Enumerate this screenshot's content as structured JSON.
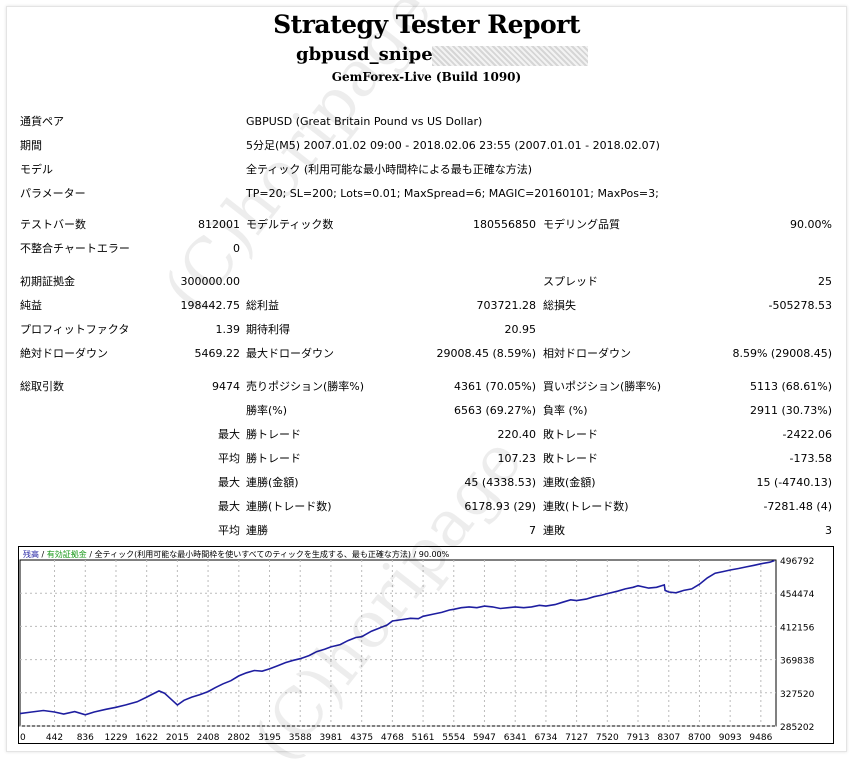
{
  "header": {
    "title": "Strategy Tester Report",
    "ea_name": "gbpusd_sniper",
    "build": "GemForex-Live (Build 1090)"
  },
  "info": [
    {
      "label": "通貨ペア",
      "value": "GBPUSD (Great Britain Pound vs US Dollar)"
    },
    {
      "label": "期間",
      "value": "5分足(M5) 2007.01.02 09:00 - 2018.02.06 23:55 (2007.01.01 - 2018.02.07)"
    },
    {
      "label": "モデル",
      "value": "全ティック (利用可能な最小時間枠による最も正確な方法)"
    },
    {
      "label": "パラメーター",
      "value": "TP=20; SL=200; Lots=0.01; MaxSpread=6; MAGIC=20160101; MaxPos=3;"
    }
  ],
  "stats": {
    "bars_label": "テストバー数",
    "bars": "812001",
    "ticks_label": "モデルティック数",
    "ticks": "180556850",
    "quality_label": "モデリング品質",
    "quality": "90.00%",
    "mismatch_label": "不整合チャートエラー",
    "mismatch": "0",
    "deposit_label": "初期証拠金",
    "deposit": "300000.00",
    "spread_label": "スプレッド",
    "spread": "25",
    "net_label": "純益",
    "net": "198442.75",
    "gross_profit_label": "総利益",
    "gross_profit": "703721.28",
    "gross_loss_label": "総損失",
    "gross_loss": "-505278.53",
    "pf_label": "プロフィットファクタ",
    "pf": "1.39",
    "expected_label": "期待利得",
    "expected": "20.95",
    "abs_dd_label": "絶対ドローダウン",
    "abs_dd": "5469.22",
    "max_dd_label": "最大ドローダウン",
    "max_dd": "29008.45 (8.59%)",
    "rel_dd_label": "相対ドローダウン",
    "rel_dd": "8.59% (29008.45)",
    "total_label": "総取引数",
    "total": "9474",
    "short_label": "売りポジション(勝率%)",
    "short": "4361 (70.05%)",
    "long_label": "買いポジション(勝率%)",
    "long": "5113 (68.61%)",
    "win_label": "勝率(%)",
    "win": "6563 (69.27%)",
    "loss_label": "負率 (%)",
    "loss": "2911 (30.73%)",
    "max_word": "最大",
    "avg_word": "平均",
    "largest_win_label": "勝トレード",
    "largest_win": "220.40",
    "largest_loss_label": "敗トレード",
    "largest_loss": "-2422.06",
    "avg_win_label": "勝トレード",
    "avg_win": "107.23",
    "avg_loss_label": "敗トレード",
    "avg_loss": "-173.58",
    "cons_win_label": "連勝(金額)",
    "cons_win": "45 (4338.53)",
    "cons_loss_label": "連敗(金額)",
    "cons_loss": "15 (-4740.13)",
    "cons_profit_label": "連勝(トレード数)",
    "cons_profit": "6178.93 (29)",
    "cons_lossamt_label": "連敗(トレード数)",
    "cons_lossamt": "-7281.48 (4)",
    "avg_cons_win_label": "連勝",
    "avg_cons_win": "7",
    "avg_cons_loss_label": "連敗",
    "avg_cons_loss": "3"
  },
  "watermark": "(C)horipage",
  "chart_data": {
    "type": "line",
    "legend": {
      "balance": "残高",
      "sep": " / ",
      "margin": "有効証拠金",
      "model": " / 全ティック(利用可能な最小時間枠を使いすべてのティックを生成する、最も正確な方法) / 90.00%"
    },
    "xlabel": "",
    "ylabel": "",
    "x_ticks": [
      "0",
      "442",
      "836",
      "1229",
      "1622",
      "2015",
      "2408",
      "2802",
      "3195",
      "3588",
      "3981",
      "4375",
      "4768",
      "5161",
      "5554",
      "5947",
      "6341",
      "6734",
      "7127",
      "7520",
      "7913",
      "8307",
      "8700",
      "9093",
      "9486"
    ],
    "y_ticks": [
      "496792",
      "454474",
      "412156",
      "369838",
      "327520",
      "285202"
    ],
    "ylim": [
      285202,
      496792
    ],
    "xlim": [
      0,
      9680
    ],
    "line_color": "#1e1ea0",
    "series": [
      {
        "x": [
          0,
          150,
          300,
          442,
          560,
          700,
          836,
          950,
          1100,
          1229,
          1350,
          1500,
          1622,
          1700,
          1780,
          1850,
          1950,
          2015,
          2100,
          2200,
          2300,
          2408,
          2500,
          2600,
          2700,
          2802,
          2900,
          3000,
          3100,
          3195,
          3300,
          3400,
          3500,
          3588,
          3700,
          3800,
          3900,
          3981,
          4100,
          4200,
          4300,
          4375,
          4500,
          4600,
          4700,
          4768,
          4900,
          5000,
          5100,
          5161,
          5300,
          5400,
          5500,
          5554,
          5650,
          5750,
          5850,
          5947,
          6050,
          6150,
          6250,
          6341,
          6450,
          6550,
          6650,
          6734,
          6850,
          6950,
          7050,
          7127,
          7250,
          7350,
          7450,
          7520,
          7650,
          7750,
          7850,
          7913,
          8050,
          8150,
          8250,
          8260,
          8307,
          8400,
          8500,
          8600,
          8700,
          8800,
          8900,
          9000,
          9093,
          9200,
          9300,
          9400,
          9486,
          9600,
          9660
        ],
        "y": [
          301000,
          303000,
          305000,
          303000,
          300500,
          303500,
          299500,
          303000,
          306500,
          309000,
          312000,
          316000,
          322000,
          326000,
          330000,
          327000,
          318000,
          312000,
          318000,
          322000,
          325000,
          329000,
          334000,
          339000,
          343000,
          349000,
          353000,
          356000,
          355000,
          358000,
          362000,
          366000,
          369000,
          371000,
          375000,
          380000,
          383000,
          386000,
          389000,
          394000,
          398000,
          399000,
          406000,
          410000,
          414000,
          419000,
          421000,
          422500,
          422000,
          425000,
          428000,
          430000,
          433000,
          434000,
          436000,
          437000,
          436000,
          438000,
          437000,
          435000,
          436000,
          437000,
          436000,
          437000,
          439000,
          438000,
          440000,
          443000,
          446000,
          445000,
          447000,
          450000,
          452000,
          454000,
          457000,
          460000,
          462000,
          464000,
          461000,
          462000,
          465000,
          458000,
          456000,
          455000,
          458000,
          460000,
          466000,
          474000,
          480000,
          482000,
          484000,
          486000,
          488000,
          490000,
          492000,
          494000,
          496000
        ]
      }
    ]
  }
}
